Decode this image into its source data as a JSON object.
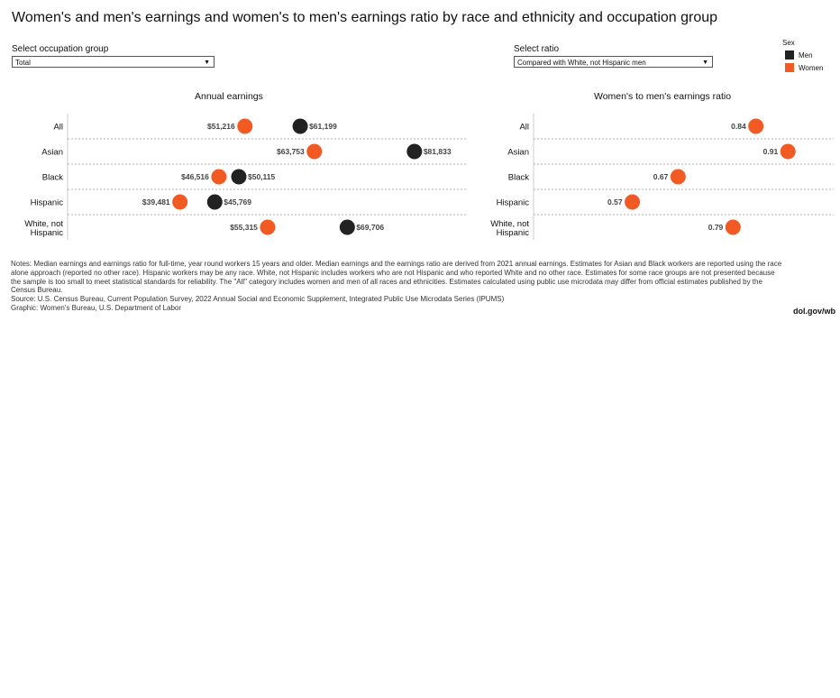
{
  "title": "Women's and men's earnings and women's to men's earnings ratio by race and ethnicity and occupation group",
  "controls": {
    "occupation": {
      "label": "Select occupation group",
      "value": "Total"
    },
    "ratio": {
      "label": "Select ratio",
      "value": "Compared with White, not Hispanic men"
    }
  },
  "legend": {
    "title": "Sex",
    "items": [
      {
        "label": "Men",
        "color": "#222222"
      },
      {
        "label": "Women",
        "color": "#f15a22"
      }
    ]
  },
  "colors": {
    "men": "#222222",
    "women": "#f15a22",
    "gridline": "#999999"
  },
  "chart_data": [
    {
      "type": "scatter",
      "title": "Annual earnings",
      "categories": [
        "All",
        "Asian",
        "Black",
        "Hispanic",
        "White, not Hispanic"
      ],
      "category_lines": [
        [
          "All"
        ],
        [
          "Asian"
        ],
        [
          "Black"
        ],
        [
          "Hispanic"
        ],
        [
          "White, not",
          "Hispanic"
        ]
      ],
      "xlim": [
        20000,
        90000
      ],
      "series": [
        {
          "name": "Men",
          "values": [
            61199,
            81833,
            50115,
            45769,
            69706
          ],
          "labels": [
            "$61,199",
            "$81,833",
            "$50,115",
            "$45,769",
            "$69,706"
          ]
        },
        {
          "name": "Women",
          "values": [
            51216,
            63753,
            46516,
            39481,
            55315
          ],
          "labels": [
            "$51,216",
            "$63,753",
            "$46,516",
            "$39,481",
            "$55,315"
          ]
        }
      ]
    },
    {
      "type": "scatter",
      "title": "Women's to men's earnings ratio",
      "categories": [
        "All",
        "Asian",
        "Black",
        "Hispanic",
        "White, not Hispanic"
      ],
      "category_lines": [
        [
          "All"
        ],
        [
          "Asian"
        ],
        [
          "Black"
        ],
        [
          "Hispanic"
        ],
        [
          "White, not",
          "Hispanic"
        ]
      ],
      "xlim": [
        0.37,
        1.01
      ],
      "series": [
        {
          "name": "Women",
          "values": [
            0.84,
            0.91,
            0.67,
            0.57,
            0.79
          ],
          "labels": [
            "0.84",
            "0.91",
            "0.67",
            "0.57",
            "0.79"
          ]
        }
      ]
    }
  ],
  "notes": [
    "Notes: Median earnings and earnings ratio for full-time, year round workers 15 years and older. Median earnings and the earnings ratio are derived from 2021 annual earnings. Estimates for Asian and Black workers are reported using the race alone approach (reported no other race). Hispanic workers may be any race. White, not Hispanic includes workers who are not Hispanic and who reported White and no other race. Estimates for some race groups are not presented because the sample is too small to meet statistical standards for reliability. The \"All\" category includes women and men of all races and ethnicities. Estimates calculated using public use microdata may differ from official estimates published by the Census Bureau.",
    "Source: U.S. Census Bureau, Current Population Survey, 2022 Annual Social and Economic Supplement, Integrated Public Use Microdata Series (IPUMS)",
    "Graphic: Women's Bureau, U.S. Department of Labor"
  ],
  "footer_link": "dol.gov/wb"
}
